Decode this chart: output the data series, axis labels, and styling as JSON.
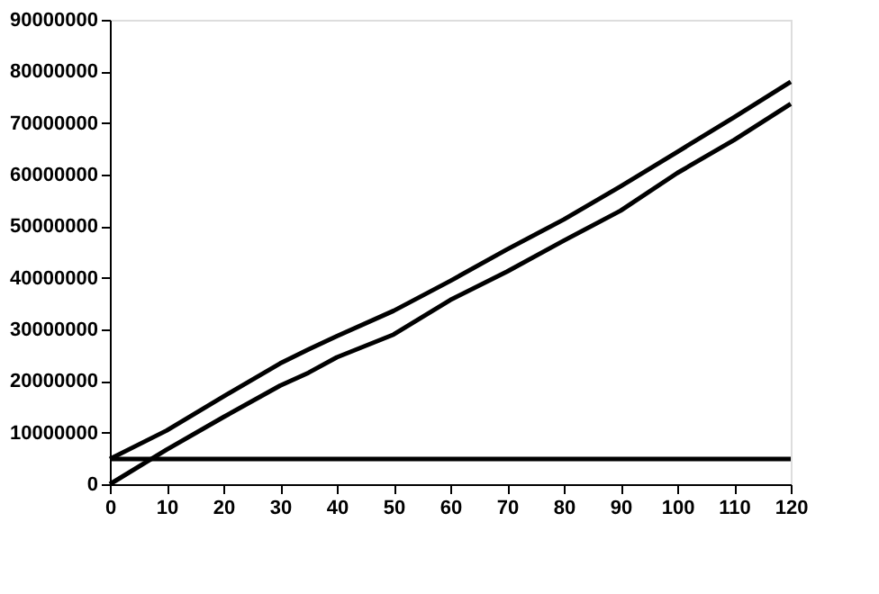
{
  "chart_data": {
    "type": "line",
    "x": [
      0,
      10,
      20,
      30,
      35,
      40,
      50,
      60,
      70,
      80,
      90,
      100,
      110,
      120
    ],
    "series": [
      {
        "color": "#000000",
        "values": [
          4900000,
          10400000,
          17000000,
          23400000,
          26100000,
          28700000,
          33600000,
          39400000,
          45500000,
          51300000,
          57700000,
          64400000,
          71100000,
          78000000
        ]
      },
      {
        "color": "#000000",
        "values": [
          0,
          6700000,
          13000000,
          19100000,
          21600000,
          24600000,
          29000000,
          35700000,
          41200000,
          47200000,
          53000000,
          60300000,
          66700000,
          73700000
        ]
      },
      {
        "color": "#000000",
        "values": [
          4900000,
          4900000,
          4900000,
          4900000,
          4900000,
          4900000,
          4900000,
          4900000,
          4900000,
          4900000,
          4900000,
          4900000,
          4900000,
          4900000
        ]
      }
    ],
    "xlim": [
      0,
      120
    ],
    "xticks": [
      0,
      10,
      20,
      30,
      40,
      50,
      60,
      70,
      80,
      90,
      100,
      110,
      120
    ],
    "ylim": [
      0,
      90000000
    ],
    "yticks": [
      0,
      10000000,
      20000000,
      30000000,
      40000000,
      50000000,
      60000000,
      70000000,
      80000000,
      90000000
    ],
    "grid": false,
    "legend": false,
    "marker": "none",
    "line_style": "solid"
  }
}
